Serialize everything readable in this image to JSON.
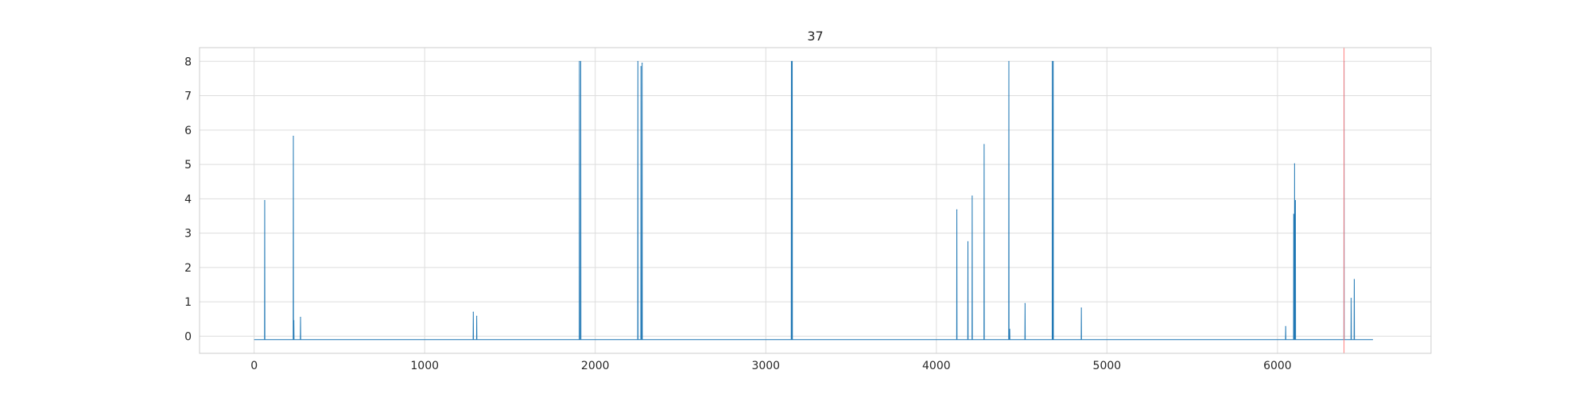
{
  "chart_data": {
    "type": "line",
    "title": "37",
    "xlabel": "",
    "ylabel": "",
    "xlim": [
      -320,
      6900
    ],
    "ylim": [
      -0.5,
      8.4
    ],
    "x_ticks": [
      0,
      1000,
      2000,
      3000,
      4000,
      5000,
      6000
    ],
    "y_ticks": [
      0,
      1,
      2,
      3,
      4,
      5,
      6,
      7,
      8
    ],
    "grid": true,
    "baseline": -0.1,
    "x_end": 6560,
    "series": [
      {
        "color": "#1f77b4",
        "spikes": [
          [
            62,
            3.95
          ],
          [
            230,
            5.82
          ],
          [
            233,
            0.45
          ],
          [
            272,
            0.55
          ],
          [
            1285,
            0.7
          ],
          [
            1305,
            0.58
          ],
          [
            1907,
            8.0
          ],
          [
            1915,
            8.0
          ],
          [
            2250,
            8.0
          ],
          [
            2268,
            7.85
          ],
          [
            2275,
            7.95
          ],
          [
            3150,
            8.0
          ],
          [
            3155,
            8.0
          ],
          [
            4120,
            3.68
          ],
          [
            4185,
            2.75
          ],
          [
            4210,
            4.08
          ],
          [
            4280,
            5.58
          ],
          [
            4425,
            8.0
          ],
          [
            4430,
            0.2
          ],
          [
            4520,
            0.95
          ],
          [
            4680,
            8.0
          ],
          [
            4685,
            8.0
          ],
          [
            4850,
            0.82
          ],
          [
            6048,
            0.28
          ],
          [
            6095,
            3.55
          ],
          [
            6100,
            5.02
          ],
          [
            6105,
            3.95
          ],
          [
            6390,
            8.0
          ],
          [
            6432,
            1.1
          ],
          [
            6450,
            1.65
          ]
        ]
      }
    ],
    "vlines": [
      {
        "x": 6390,
        "color": "#ff7f7f"
      }
    ]
  }
}
